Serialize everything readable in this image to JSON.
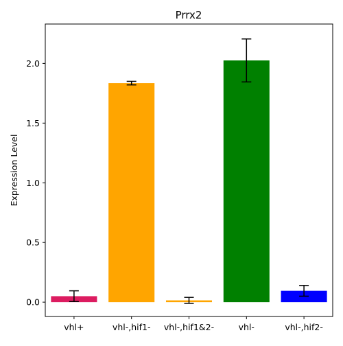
{
  "chart_data": {
    "type": "bar",
    "title": "Prrx2",
    "xlabel": "",
    "ylabel": "Expression Level",
    "categories": [
      "vhl+",
      "vhl-,hif1-",
      "vhl-,hif1&2-",
      "vhl-",
      "vhl-,hif2-"
    ],
    "values": [
      0.05,
      1.835,
      0.015,
      2.025,
      0.095
    ],
    "errors": [
      0.045,
      0.015,
      0.025,
      0.18,
      0.045
    ],
    "colors": [
      "#dc1c60",
      "#ffa500",
      "#ffa500",
      "#008000",
      "#0000ff"
    ],
    "yticks": [
      0.0,
      0.5,
      1.0,
      1.5,
      2.0
    ],
    "ytick_labels": [
      "0.0",
      "0.5",
      "1.0",
      "1.5",
      "2.0"
    ],
    "ylim": [
      -0.12,
      2.33
    ],
    "grid": false,
    "legend": "none"
  }
}
